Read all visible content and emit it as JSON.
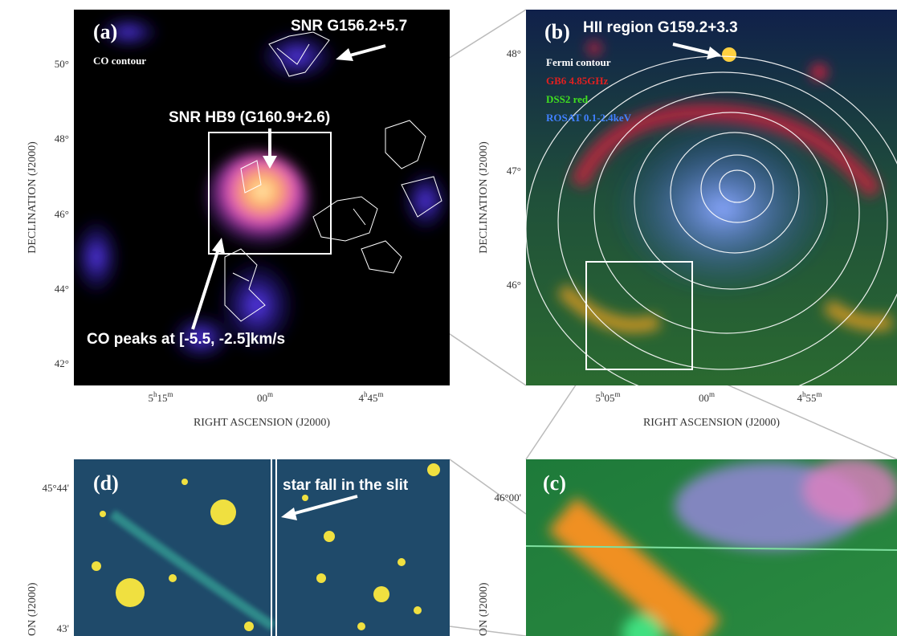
{
  "panels": [
    {
      "label": "(a)",
      "legend": [
        "CO contour"
      ],
      "annotations": [
        "SNR G156.2+5.7",
        "SNR HB9 (G160.9+2.6)",
        "CO peaks at [-5.5, -2.5]km/s"
      ],
      "yticks": [
        "50°",
        "48°",
        "46°",
        "44°",
        "42°"
      ],
      "xticks": [
        [
          "5",
          "h",
          "15",
          "m"
        ],
        [
          "00",
          "m"
        ],
        [
          "4",
          "h",
          "45",
          "m"
        ]
      ],
      "ylabel": "DECLINATION (J2000)",
      "xlabel": "RIGHT ASCENSION (J2000)"
    },
    {
      "label": "(b)",
      "legend": [
        "Fermi contour",
        "GB6 4.85GHz",
        "DSS2 red",
        "ROSAT 0.1-2.4keV"
      ],
      "annotations": [
        "HII region G159.2+3.3"
      ],
      "yticks": [
        "48°",
        "47°",
        "46°"
      ],
      "xticks": [
        [
          "5",
          "h",
          "05",
          "m"
        ],
        [
          "00",
          "m"
        ],
        [
          "4",
          "h",
          "55",
          "m"
        ]
      ],
      "ylabel": "DECLINATION (J2000)",
      "xlabel": "RIGHT ASCENSION (J2000)"
    },
    {
      "label": "(d)",
      "annotations": [
        "star fall in the slit"
      ],
      "yticks": [
        "45°44'",
        "43'"
      ],
      "ylabel": "ON (J2000)"
    },
    {
      "label": "(c)",
      "yticks": [
        "46°00'"
      ],
      "ylabel": "ON (J2000)"
    }
  ]
}
